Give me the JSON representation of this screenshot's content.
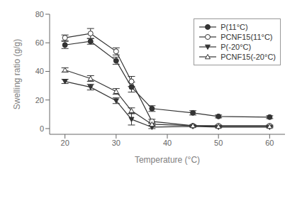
{
  "chart_data": {
    "type": "line",
    "xlabel": "Temperature (°C)",
    "ylabel": "Swelling ratio (g/g)",
    "x": [
      20,
      25,
      30,
      33,
      37,
      45,
      50,
      60
    ],
    "series": [
      {
        "name": "P(11°C)",
        "color": "#333333",
        "marker": "filled_circle",
        "values": [
          58.5,
          61.0,
          47.5,
          29.0,
          14.0,
          11.0,
          8.5,
          8.0
        ],
        "yerr": [
          2.5,
          2.0,
          2.5,
          3.5,
          2.0,
          1.5,
          1.0,
          1.0
        ]
      },
      {
        "name": "PCNF15(11°C)",
        "color": "#333333",
        "marker": "open_circle",
        "values": [
          63.5,
          66.5,
          54.0,
          33.0,
          5.0,
          2.0,
          2.0,
          2.0
        ],
        "yerr": [
          2.0,
          3.5,
          2.5,
          3.5,
          1.5,
          0.5,
          0.5,
          0.5
        ]
      },
      {
        "name": "P(-20°C)",
        "color": "#333333",
        "marker": "filled_triangle_down",
        "values": [
          33.0,
          29.0,
          19.5,
          6.5,
          1.0,
          1.5,
          1.0,
          1.0
        ],
        "yerr": [
          1.5,
          2.0,
          2.0,
          4.0,
          1.0,
          0.5,
          0.5,
          0.5
        ]
      },
      {
        "name": "PCNF15(-20°C)",
        "color": "#333333",
        "marker": "open_triangle_up",
        "values": [
          41.0,
          35.0,
          26.0,
          12.5,
          3.0,
          2.0,
          1.5,
          1.5
        ],
        "yerr": [
          1.5,
          2.0,
          2.0,
          2.0,
          1.0,
          0.5,
          0.5,
          0.5
        ]
      }
    ],
    "xlim": [
      17,
      63
    ],
    "ylim": [
      -4,
      80
    ],
    "xticks": [
      20,
      30,
      40,
      50,
      60
    ],
    "yticks": [
      0,
      20,
      40,
      60,
      80
    ],
    "legend": "upper right",
    "grid": false
  }
}
